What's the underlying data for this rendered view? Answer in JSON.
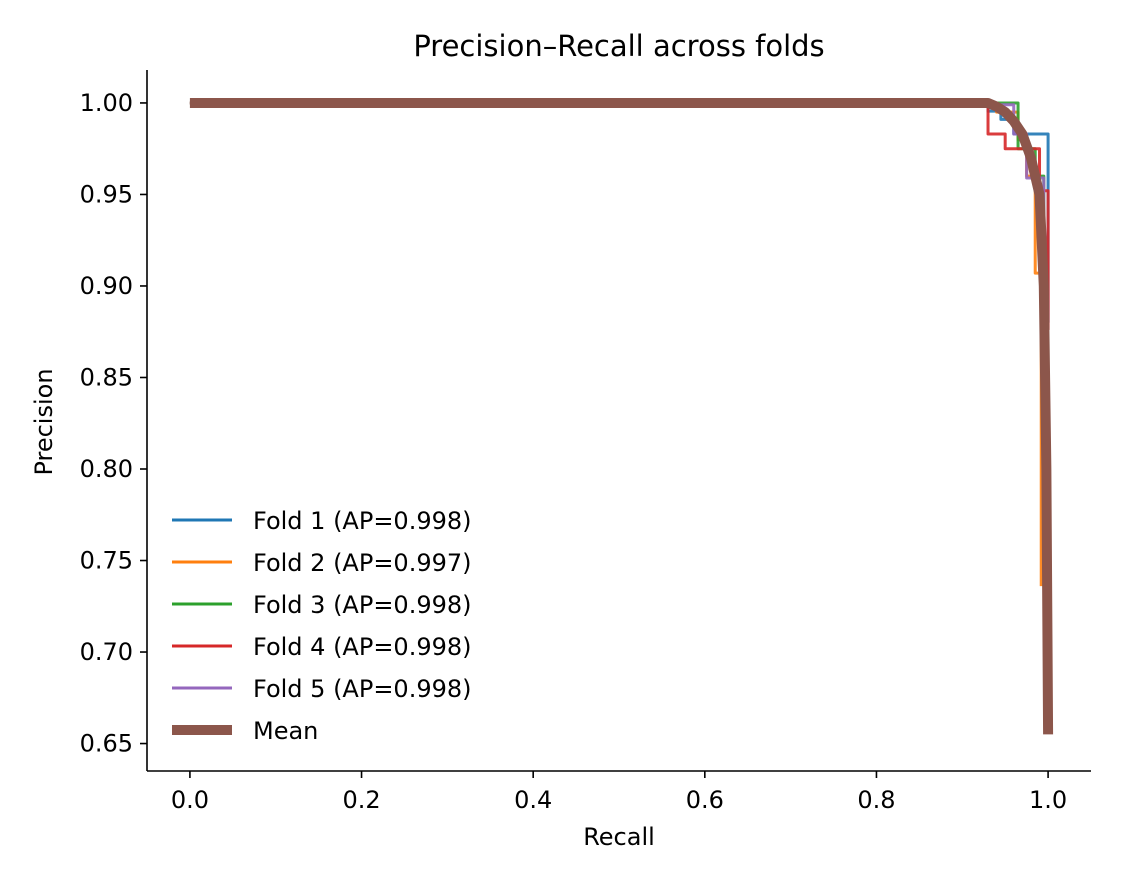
{
  "chart_data": {
    "type": "line",
    "title": "Precision–Recall across folds",
    "xlabel": "Recall",
    "ylabel": "Precision",
    "xlim": [
      -0.05,
      1.05
    ],
    "ylim": [
      0.635,
      1.018
    ],
    "xticks": [
      "0.0",
      "0.2",
      "0.4",
      "0.6",
      "0.8",
      "1.0"
    ],
    "yticks": [
      "0.65",
      "0.70",
      "0.75",
      "0.80",
      "0.85",
      "0.90",
      "0.95",
      "1.00"
    ],
    "grid": false,
    "legend_position": "lower-left",
    "series": [
      {
        "name": "Fold 1 (AP=0.998)",
        "color": "#1f77b4",
        "width": 1.5,
        "points": [
          [
            0.0,
            1.0
          ],
          [
            0.93,
            1.0
          ],
          [
            0.93,
            0.9955
          ],
          [
            0.945,
            0.9955
          ],
          [
            0.945,
            0.991
          ],
          [
            0.96,
            0.991
          ],
          [
            0.96,
            0.983
          ],
          [
            1.0,
            0.983
          ],
          [
            1.0,
            0.88
          ]
        ]
      },
      {
        "name": "Fold 2 (AP=0.997)",
        "color": "#ff7f0e",
        "width": 1.5,
        "points": [
          [
            0.0,
            1.0
          ],
          [
            0.94,
            1.0
          ],
          [
            0.94,
            0.995
          ],
          [
            0.965,
            0.995
          ],
          [
            0.965,
            0.98
          ],
          [
            0.975,
            0.98
          ],
          [
            0.975,
            0.96
          ],
          [
            0.985,
            0.96
          ],
          [
            0.985,
            0.907
          ],
          [
            0.992,
            0.907
          ],
          [
            0.992,
            0.736
          ]
        ]
      },
      {
        "name": "Fold 3 (AP=0.998)",
        "color": "#2ca02c",
        "width": 1.5,
        "points": [
          [
            0.0,
            1.0
          ],
          [
            0.965,
            1.0
          ],
          [
            0.965,
            0.975
          ],
          [
            0.985,
            0.975
          ],
          [
            0.985,
            0.96
          ],
          [
            0.995,
            0.96
          ],
          [
            0.995,
            0.895
          ]
        ]
      },
      {
        "name": "Fold 4 (AP=0.998)",
        "color": "#d62728",
        "width": 1.5,
        "points": [
          [
            0.0,
            1.0
          ],
          [
            0.93,
            1.0
          ],
          [
            0.93,
            0.983
          ],
          [
            0.95,
            0.983
          ],
          [
            0.95,
            0.975
          ],
          [
            0.99,
            0.975
          ],
          [
            0.99,
            0.952
          ],
          [
            1.0,
            0.952
          ],
          [
            1.0,
            0.876
          ]
        ]
      },
      {
        "name": "Fold 5 (AP=0.998)",
        "color": "#9467bd",
        "width": 1.5,
        "points": [
          [
            0.0,
            1.0
          ],
          [
            0.93,
            1.0
          ],
          [
            0.93,
            0.999
          ],
          [
            0.96,
            0.999
          ],
          [
            0.96,
            0.983
          ],
          [
            0.975,
            0.983
          ],
          [
            0.975,
            0.959
          ],
          [
            0.995,
            0.959
          ],
          [
            0.995,
            0.875
          ]
        ]
      },
      {
        "name": "Mean",
        "color": "#8c564b",
        "width": 5,
        "points": [
          [
            0.0,
            1.0
          ],
          [
            0.93,
            1.0
          ],
          [
            0.94,
            0.998
          ],
          [
            0.95,
            0.995
          ],
          [
            0.96,
            0.99
          ],
          [
            0.97,
            0.983
          ],
          [
            0.98,
            0.97
          ],
          [
            0.99,
            0.95
          ],
          [
            0.995,
            0.9
          ],
          [
            0.998,
            0.8
          ],
          [
            1.0,
            0.655
          ]
        ]
      }
    ]
  }
}
